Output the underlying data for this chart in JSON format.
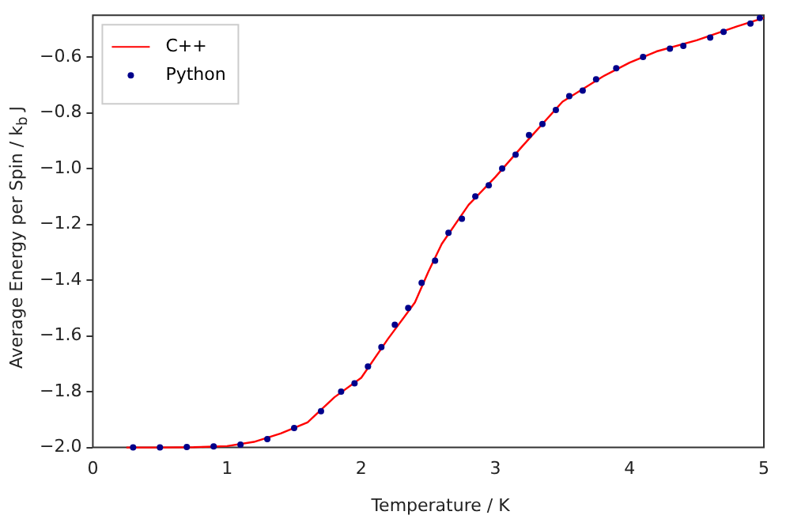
{
  "chart_data": {
    "type": "line",
    "xlabel": "Temperature / K",
    "ylabel": "Average Energy per Spin / k$_{b}$ J",
    "xlim": [
      0,
      5
    ],
    "ylim": [
      -2.0,
      -0.45
    ],
    "xticks": [
      0,
      1,
      2,
      3,
      4,
      5
    ],
    "yticks": [
      {
        "value": -2.0,
        "label": "−2.0"
      },
      -1.8,
      -1.6,
      -1.4,
      -1.2,
      {
        "value": -1.0,
        "label": "−1.0"
      },
      -0.8,
      -0.6
    ],
    "grid": false,
    "legend": "top left",
    "series": [
      {
        "name": "C++",
        "color": "#ff0000",
        "marker": "none",
        "x": [
          0.25,
          0.5,
          0.75,
          1.0,
          1.2,
          1.4,
          1.6,
          1.8,
          2.0,
          2.2,
          2.4,
          2.5,
          2.6,
          2.8,
          3.0,
          3.2,
          3.5,
          3.8,
          4.0,
          4.2,
          4.5,
          4.8,
          5.0
        ],
        "values": [
          -2.0,
          -2.0,
          -1.999,
          -1.995,
          -1.98,
          -1.95,
          -1.91,
          -1.82,
          -1.75,
          -1.61,
          -1.48,
          -1.37,
          -1.27,
          -1.13,
          -1.03,
          -0.92,
          -0.76,
          -0.67,
          -0.62,
          -0.58,
          -0.54,
          -0.49,
          -0.46
        ]
      },
      {
        "name": "Python",
        "type": "scatter",
        "color": "#00008b",
        "marker": "circle",
        "x": [
          0.3,
          0.5,
          0.7,
          0.9,
          1.1,
          1.3,
          1.5,
          1.7,
          1.85,
          1.95,
          2.05,
          2.15,
          2.25,
          2.35,
          2.45,
          2.55,
          2.65,
          2.75,
          2.85,
          2.95,
          3.05,
          3.15,
          3.25,
          3.35,
          3.45,
          3.55,
          3.65,
          3.75,
          3.9,
          4.1,
          4.3,
          4.4,
          4.6,
          4.7,
          4.9,
          4.97
        ],
        "values": [
          -2.0,
          -2.0,
          -1.998,
          -1.996,
          -1.99,
          -1.97,
          -1.93,
          -1.87,
          -1.8,
          -1.77,
          -1.71,
          -1.64,
          -1.56,
          -1.5,
          -1.41,
          -1.33,
          -1.23,
          -1.18,
          -1.1,
          -1.06,
          -1.0,
          -0.95,
          -0.88,
          -0.84,
          -0.79,
          -0.74,
          -0.72,
          -0.68,
          -0.64,
          -0.6,
          -0.57,
          -0.56,
          -0.53,
          -0.51,
          -0.48,
          -0.46
        ]
      }
    ]
  }
}
